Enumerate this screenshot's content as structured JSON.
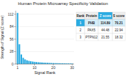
{
  "chart_data": {
    "type": "bar",
    "title": "Human Protein Microarray Specificity Validation",
    "xlabel": "Signal Rank",
    "ylabel": "Strength of Signal (Z score)",
    "x": [
      1,
      2,
      3,
      4,
      5,
      6,
      7,
      8,
      9,
      10,
      11,
      12,
      13,
      14,
      15,
      16,
      17,
      18,
      19,
      20,
      21,
      22,
      23,
      24,
      25,
      26,
      27,
      28,
      29,
      30
    ],
    "values": [
      114.89,
      44.48,
      21.55,
      14.0,
      10.5,
      8.5,
      7.2,
      6.3,
      5.6,
      5.0,
      4.5,
      4.1,
      3.8,
      3.5,
      3.2,
      3.0,
      2.8,
      2.6,
      2.4,
      2.2,
      2.1,
      2.0,
      1.9,
      1.8,
      1.7,
      1.6,
      1.5,
      1.4,
      1.3,
      1.2
    ],
    "color": "#29abe2",
    "xlim": [
      0,
      31
    ],
    "xticks": [
      1,
      10,
      20,
      30
    ],
    "ylim": [
      0,
      120
    ],
    "yticks": [
      0,
      28,
      56,
      84,
      112
    ],
    "table": {
      "headers": [
        "Rank",
        "Protein",
        "Z score",
        "S score"
      ],
      "rows": [
        [
          "1",
          "PHB",
          "114.89",
          "70.21"
        ],
        [
          "2",
          "PAX5",
          "44.48",
          "22.94"
        ],
        [
          "3",
          "PTPN12",
          "21.55",
          "18.32"
        ]
      ]
    }
  }
}
